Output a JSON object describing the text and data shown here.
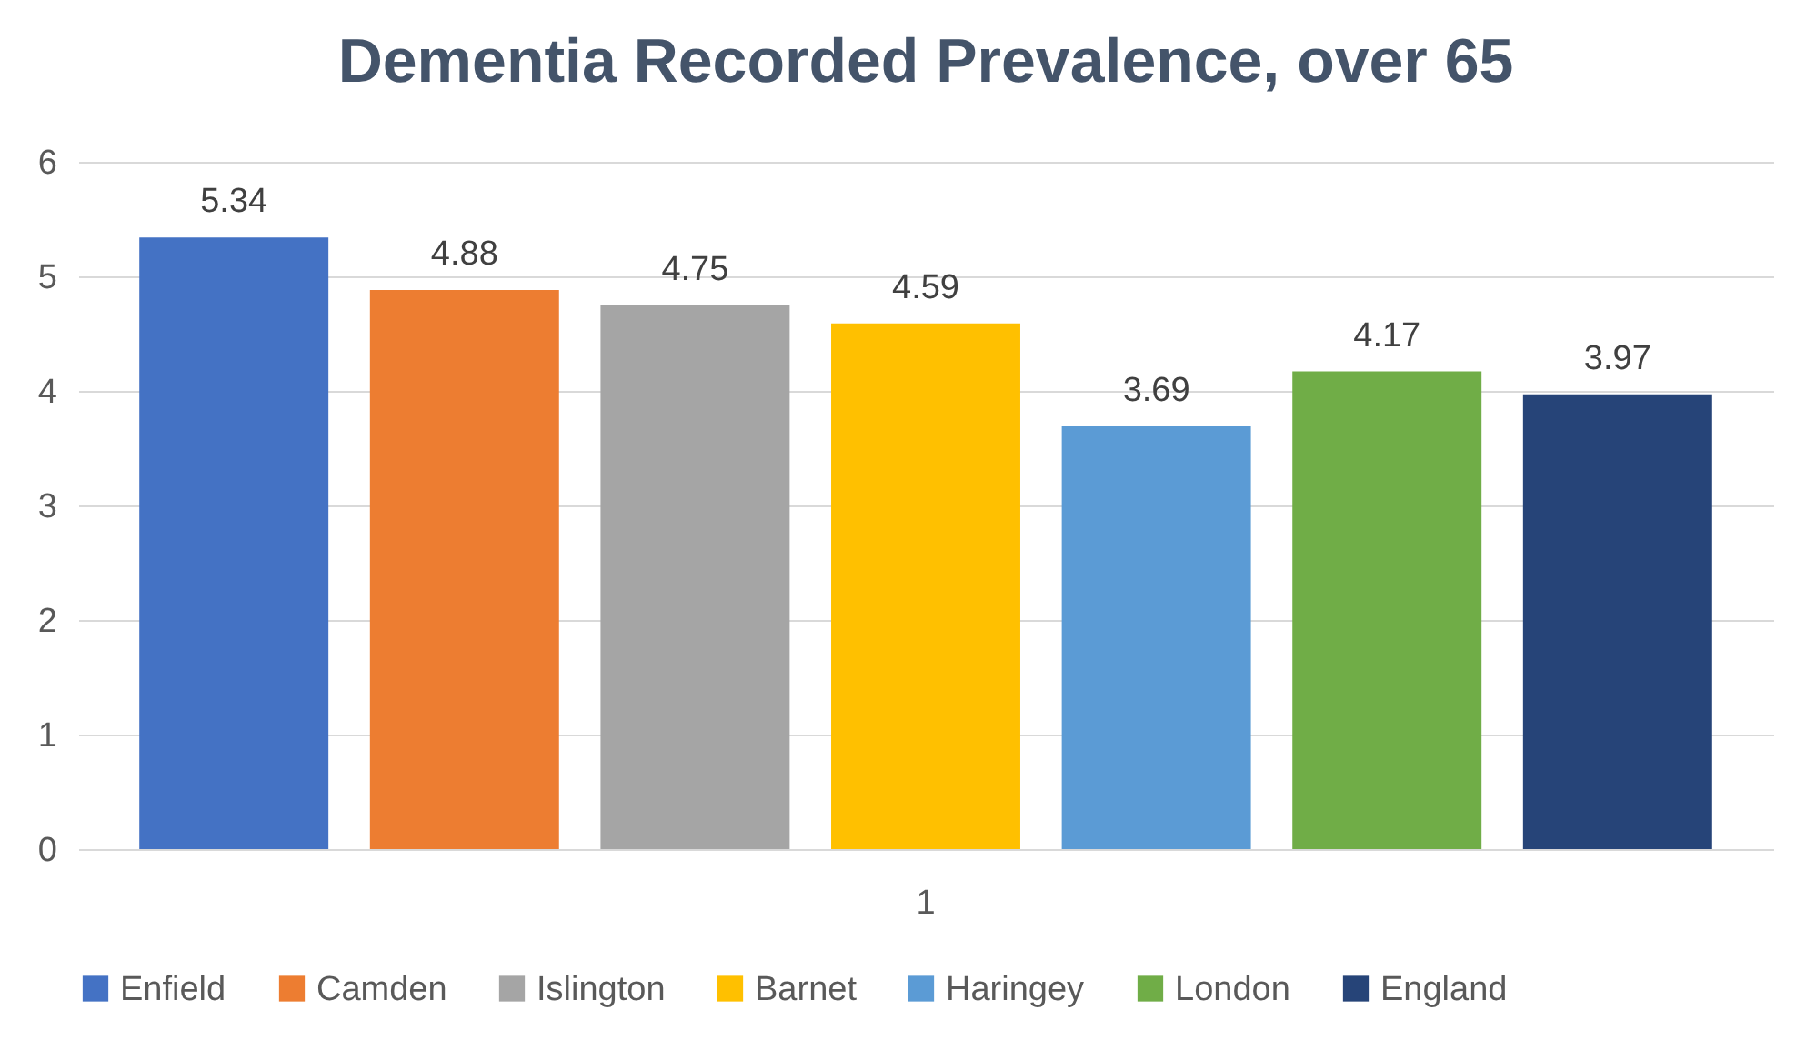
{
  "chart_data": {
    "type": "bar",
    "title": "Dementia Recorded Prevalence, over 65",
    "categories": [
      "1"
    ],
    "series": [
      {
        "name": "Enfield",
        "color": "#4472c4",
        "values": [
          5.34
        ]
      },
      {
        "name": "Camden",
        "color": "#ed7d31",
        "values": [
          4.88
        ]
      },
      {
        "name": "Islington",
        "color": "#a5a5a5",
        "values": [
          4.75
        ]
      },
      {
        "name": "Barnet",
        "color": "#ffc000",
        "values": [
          4.59
        ]
      },
      {
        "name": "Haringey",
        "color": "#5b9bd5",
        "values": [
          3.69
        ]
      },
      {
        "name": "London",
        "color": "#70ad47",
        "values": [
          4.17
        ]
      },
      {
        "name": "England",
        "color": "#264478",
        "values": [
          3.97
        ]
      }
    ],
    "ylim": [
      0,
      6
    ],
    "yticks": [
      0,
      1,
      2,
      3,
      4,
      5,
      6
    ],
    "grid": "y",
    "legend": "bottom",
    "data_labels": true
  }
}
